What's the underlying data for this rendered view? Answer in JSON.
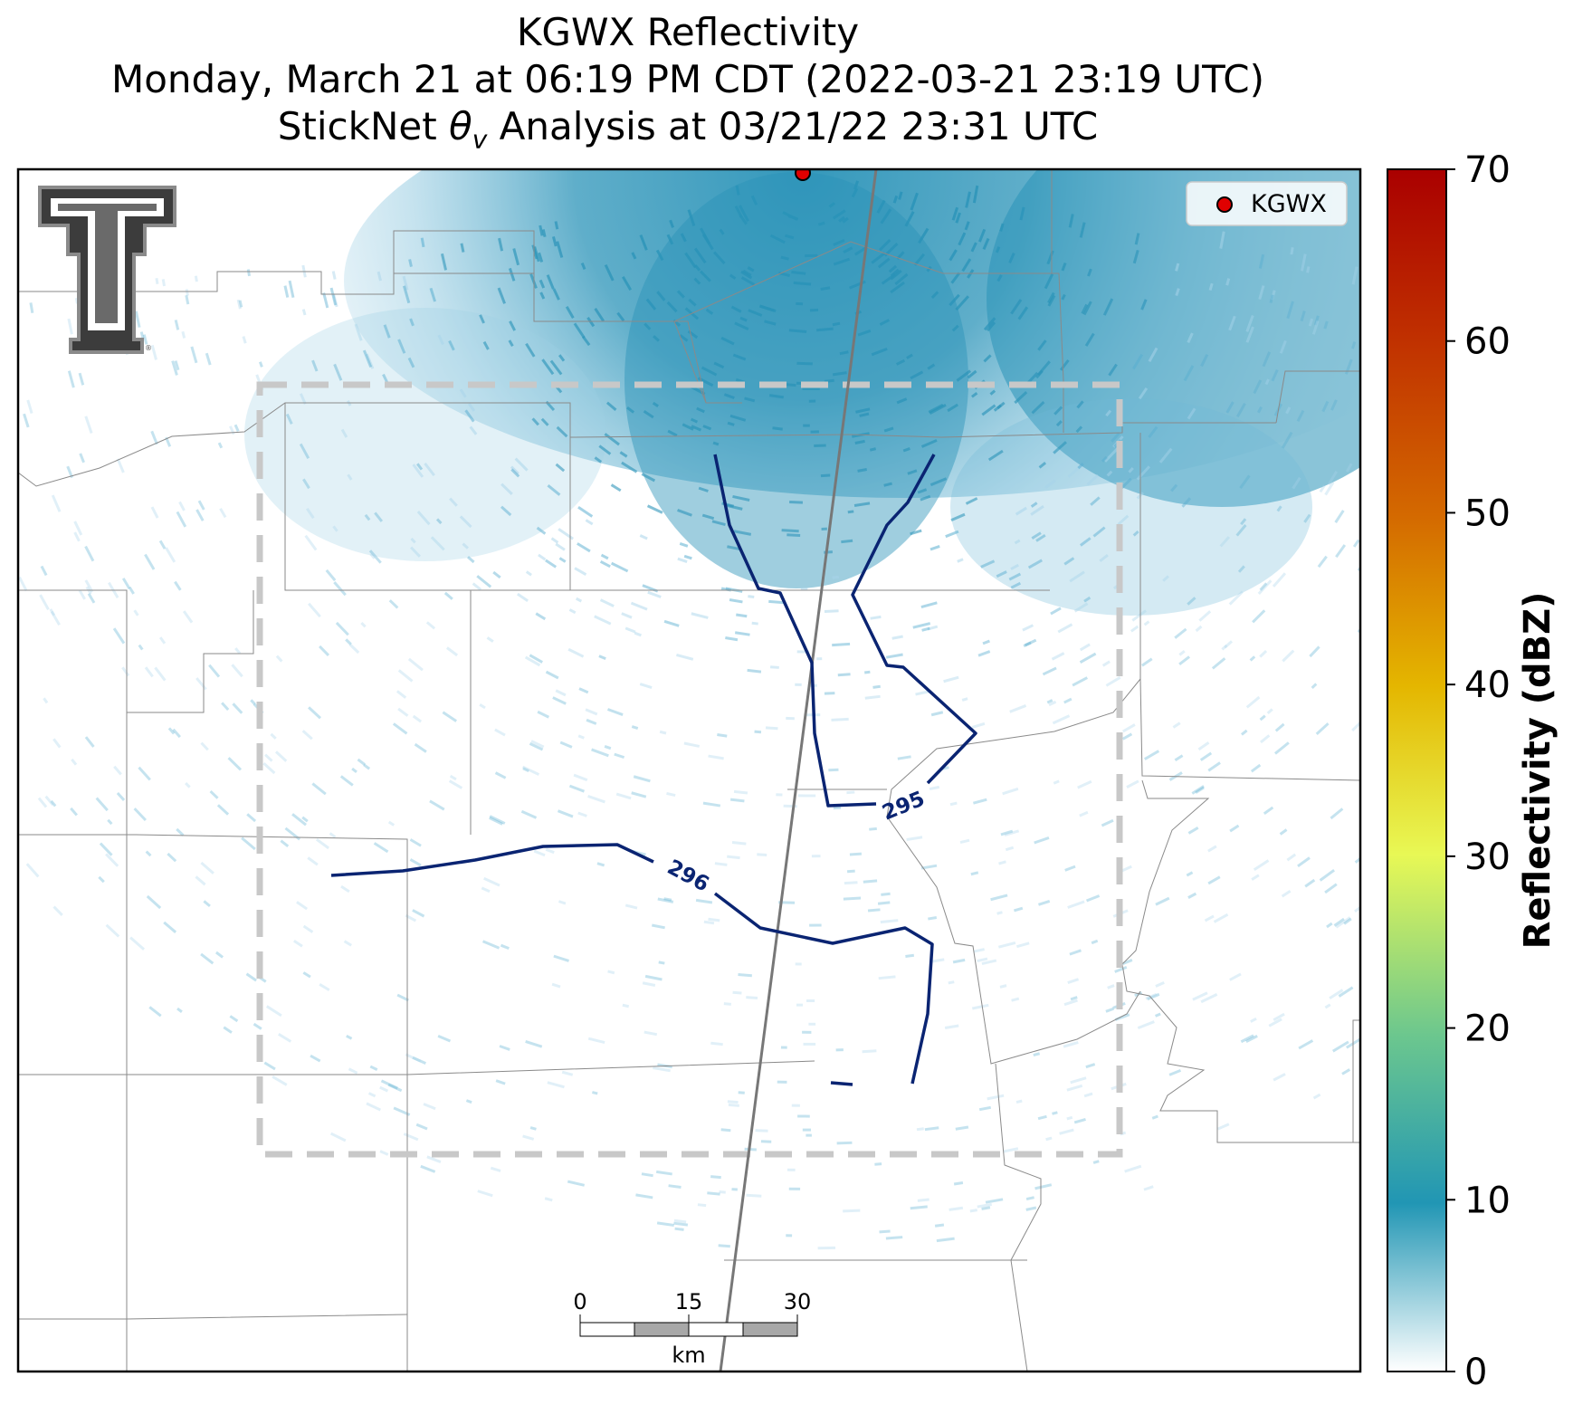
{
  "title": {
    "line1": "KGWX Reflectivity",
    "line2": "Monday, March 21 at 06:19 PM CDT (2022-03-21 23:19 UTC)",
    "line3_prefix": "StickNet ",
    "line3_theta": "θ",
    "line3_sub": "v",
    "line3_suffix": " Analysis at 03/21/22 23:31 UTC"
  },
  "legend": {
    "marker_label": "KGWX",
    "marker_color": "#e00000"
  },
  "colorbar": {
    "label": "Reflectivity (dBZ)",
    "ticks": [
      "0",
      "10",
      "20",
      "30",
      "40",
      "50",
      "60",
      "70"
    ],
    "min": 0,
    "max": 70,
    "colors": [
      "#ffffff",
      "#2196b4",
      "#6cc78e",
      "#e8f855",
      "#e4b600",
      "#d46a00",
      "#aa0000"
    ]
  },
  "contours": [
    {
      "label": "295"
    },
    {
      "label": "296"
    }
  ],
  "scale_bar": {
    "ticks": [
      "0",
      "15",
      "30"
    ],
    "unit": "km"
  },
  "colors": {
    "contour": "#0a2472",
    "analysis_box": "#c8c8c8",
    "county_lines": "#8a8a8a",
    "radar_echo": "#2a93b8"
  }
}
